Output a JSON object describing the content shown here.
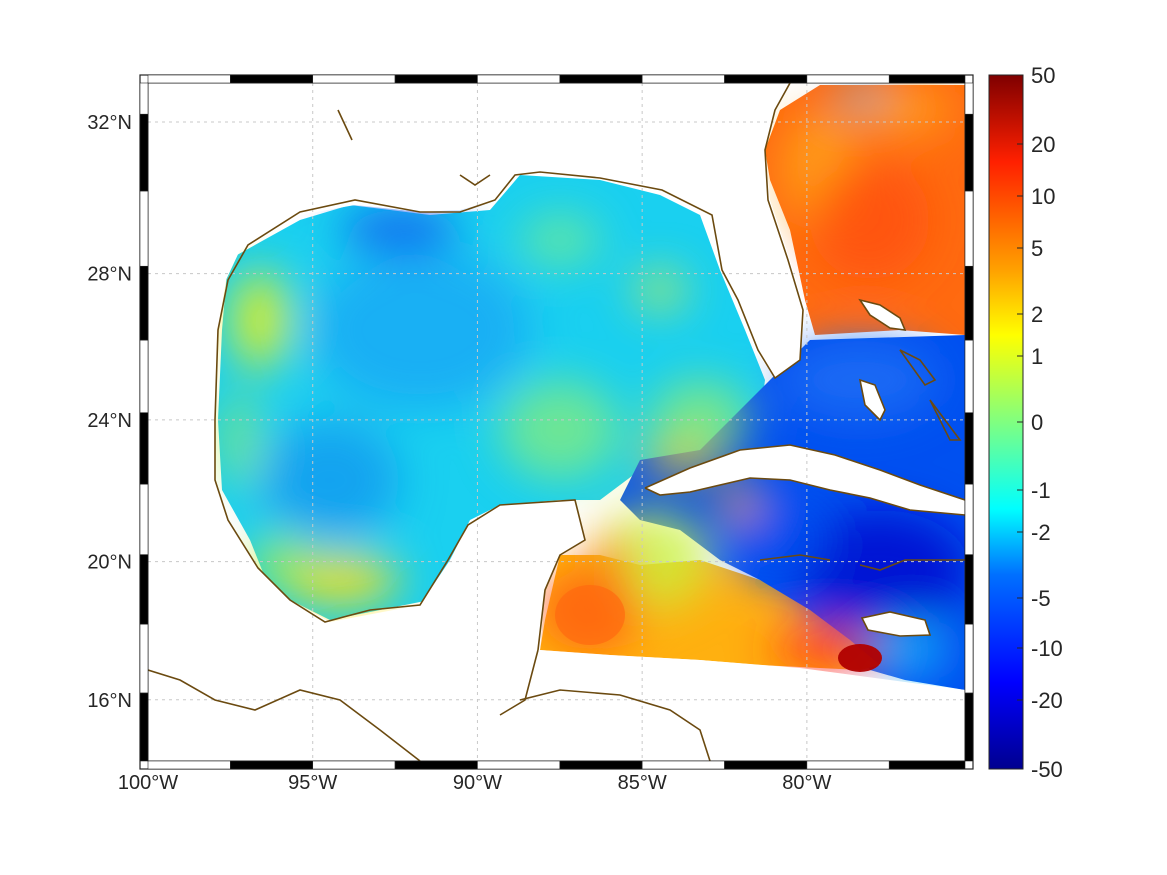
{
  "map": {
    "lon_range": [
      -100,
      -75.2
    ],
    "lat_range": [
      14.2,
      33
    ],
    "lon_ticks": [
      {
        "value": -100,
        "label": "100°W"
      },
      {
        "value": -95,
        "label": "95°W"
      },
      {
        "value": -90,
        "label": "90°W"
      },
      {
        "value": -85,
        "label": "85°W"
      },
      {
        "value": -80,
        "label": "80°W"
      }
    ],
    "lat_ticks": [
      {
        "value": 32,
        "label": "32°N"
      },
      {
        "value": 28,
        "label": "28°N"
      },
      {
        "value": 24,
        "label": "24°N"
      },
      {
        "value": 20,
        "label": "20°N"
      },
      {
        "value": 16,
        "label": "16°N"
      }
    ],
    "coast_color": "#6b4a10",
    "grid": true
  },
  "colorbar": {
    "labels": [
      "50",
      "20",
      "10",
      "5",
      "2",
      "1",
      "0",
      "-1",
      "-2",
      "-5",
      "-10",
      "-20",
      "-50"
    ],
    "colors": [
      "#ffffff"
    ]
  }
}
